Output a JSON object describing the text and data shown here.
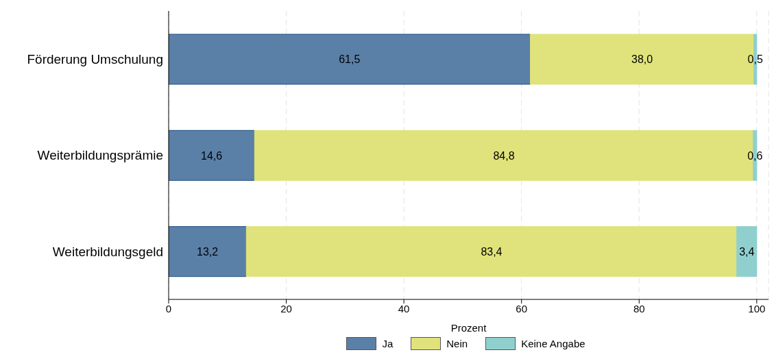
{
  "chart_data": {
    "type": "bar",
    "orientation": "horizontal",
    "stacked": true,
    "categories": [
      "Förderung Umschulung",
      "Weiterbildungsprämie",
      "Weiterbildungsgeld"
    ],
    "series": [
      {
        "name": "Ja",
        "color": "#5a80a8",
        "values": [
          61.5,
          14.6,
          13.2
        ],
        "value_labels": [
          "61,5",
          "14,6",
          "13,2"
        ]
      },
      {
        "name": "Nein",
        "color": "#e0e37b",
        "values": [
          38.0,
          84.8,
          83.4
        ],
        "value_labels": [
          "38,0",
          "84,8",
          "83,4"
        ]
      },
      {
        "name": "Keine Angabe",
        "color": "#8fd0cf",
        "values": [
          0.5,
          0.6,
          3.4
        ],
        "value_labels": [
          "0,5",
          "0,6",
          "3,4"
        ]
      }
    ],
    "xlabel": "Prozent",
    "xlim": [
      0,
      102
    ],
    "xticks": [
      0,
      20,
      40,
      60,
      80,
      100
    ],
    "grid": "x",
    "legend": "bottom"
  }
}
